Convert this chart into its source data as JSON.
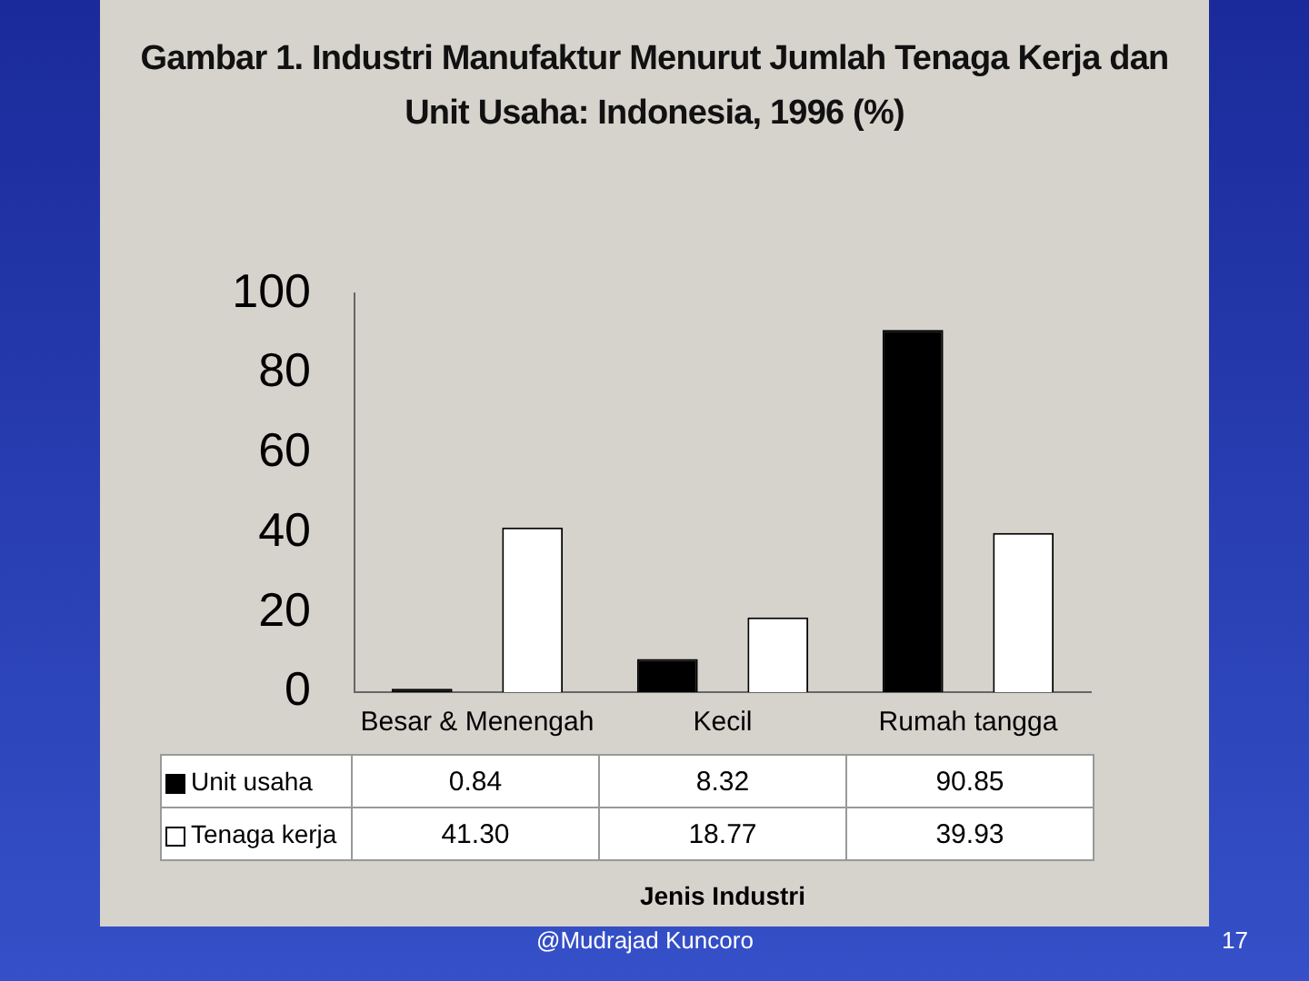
{
  "chart_data": {
    "type": "bar",
    "title": "Gambar 1. Industri Manufaktur Menurut Jumlah Tenaga Kerja dan Unit Usaha: Indonesia, 1996 (%)",
    "categories": [
      "Besar & Menengah",
      "Kecil",
      "Rumah tangga"
    ],
    "series": [
      {
        "name": "Unit usaha",
        "color": "#000000",
        "values": [
          0.84,
          8.32,
          90.85
        ],
        "value_labels": [
          "0.84",
          "8.32",
          "90.85"
        ]
      },
      {
        "name": "Tenaga kerja",
        "color": "#ffffff",
        "values": [
          41.3,
          18.77,
          39.93
        ],
        "value_labels": [
          "41.30",
          "18.77",
          "39.93"
        ]
      }
    ],
    "ylim": [
      0,
      100
    ],
    "yticks": [
      0,
      20,
      40,
      60,
      80,
      100
    ],
    "grid": false,
    "legend": "bottom left",
    "annotations": [
      "@Mudrajad Kuncoro",
      "17",
      "Jenis Industri"
    ]
  }
}
